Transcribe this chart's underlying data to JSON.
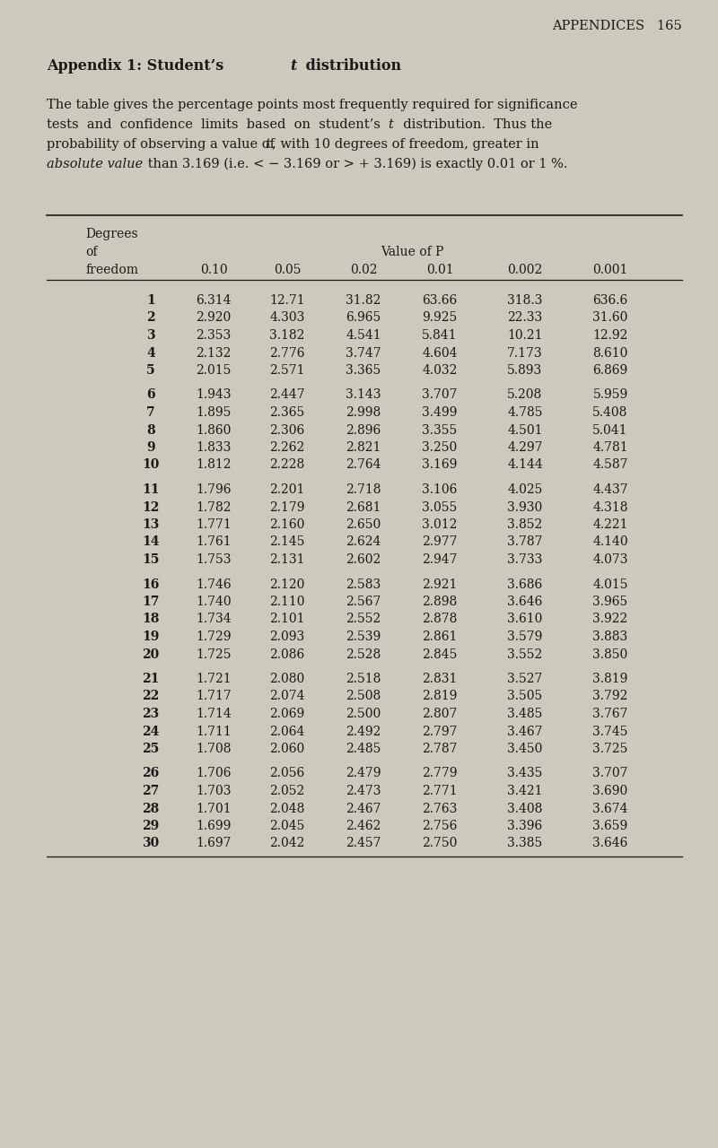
{
  "page_header": "APPENDICES   165",
  "bg_color": "#cdc9bc",
  "text_color": "#1a1a1a",
  "group_breaks": [
    5,
    10,
    15,
    20,
    25
  ],
  "degrees": [
    1,
    2,
    3,
    4,
    5,
    6,
    7,
    8,
    9,
    10,
    11,
    12,
    13,
    14,
    15,
    16,
    17,
    18,
    19,
    20,
    21,
    22,
    23,
    24,
    25,
    26,
    27,
    28,
    29,
    30
  ],
  "p010": [
    "6.314",
    "2.920",
    "2.353",
    "2.132",
    "2.015",
    "1.943",
    "1.895",
    "1.860",
    "1.833",
    "1.812",
    "1.796",
    "1.782",
    "1.771",
    "1.761",
    "1.753",
    "1.746",
    "1.740",
    "1.734",
    "1.729",
    "1.725",
    "1.721",
    "1.717",
    "1.714",
    "1.711",
    "1.708",
    "1.706",
    "1.703",
    "1.701",
    "1.699",
    "1.697"
  ],
  "p005": [
    "12.71",
    "4.303",
    "3.182",
    "2.776",
    "2.571",
    "2.447",
    "2.365",
    "2.306",
    "2.262",
    "2.228",
    "2.201",
    "2.179",
    "2.160",
    "2.145",
    "2.131",
    "2.120",
    "2.110",
    "2.101",
    "2.093",
    "2.086",
    "2.080",
    "2.074",
    "2.069",
    "2.064",
    "2.060",
    "2.056",
    "2.052",
    "2.048",
    "2.045",
    "2.042"
  ],
  "p002": [
    "31.82",
    "6.965",
    "4.541",
    "3.747",
    "3.365",
    "3.143",
    "2.998",
    "2.896",
    "2.821",
    "2.764",
    "2.718",
    "2.681",
    "2.650",
    "2.624",
    "2.602",
    "2.583",
    "2.567",
    "2.552",
    "2.539",
    "2.528",
    "2.518",
    "2.508",
    "2.500",
    "2.492",
    "2.485",
    "2.479",
    "2.473",
    "2.467",
    "2.462",
    "2.457"
  ],
  "p001": [
    "63.66",
    "9.925",
    "5.841",
    "4.604",
    "4.032",
    "3.707",
    "3.499",
    "3.355",
    "3.250",
    "3.169",
    "3.106",
    "3.055",
    "3.012",
    "2.977",
    "2.947",
    "2.921",
    "2.898",
    "2.878",
    "2.861",
    "2.845",
    "2.831",
    "2.819",
    "2.807",
    "2.797",
    "2.787",
    "2.779",
    "2.771",
    "2.763",
    "2.756",
    "2.750"
  ],
  "p0002": [
    "318.3",
    "22.33",
    "10.21",
    "7.173",
    "5.893",
    "5.208",
    "4.785",
    "4.501",
    "4.297",
    "4.144",
    "4.025",
    "3.930",
    "3.852",
    "3.787",
    "3.733",
    "3.686",
    "3.646",
    "3.610",
    "3.579",
    "3.552",
    "3.527",
    "3.505",
    "3.485",
    "3.467",
    "3.450",
    "3.435",
    "3.421",
    "3.408",
    "3.396",
    "3.385"
  ],
  "p0001": [
    "636.6",
    "31.60",
    "12.92",
    "8.610",
    "6.869",
    "5.959",
    "5.408",
    "5.041",
    "4.781",
    "4.587",
    "4.437",
    "4.318",
    "4.221",
    "4.140",
    "4.073",
    "4.015",
    "3.965",
    "3.922",
    "3.883",
    "3.850",
    "3.819",
    "3.792",
    "3.767",
    "3.745",
    "3.725",
    "3.707",
    "3.690",
    "3.674",
    "3.659",
    "3.646"
  ]
}
